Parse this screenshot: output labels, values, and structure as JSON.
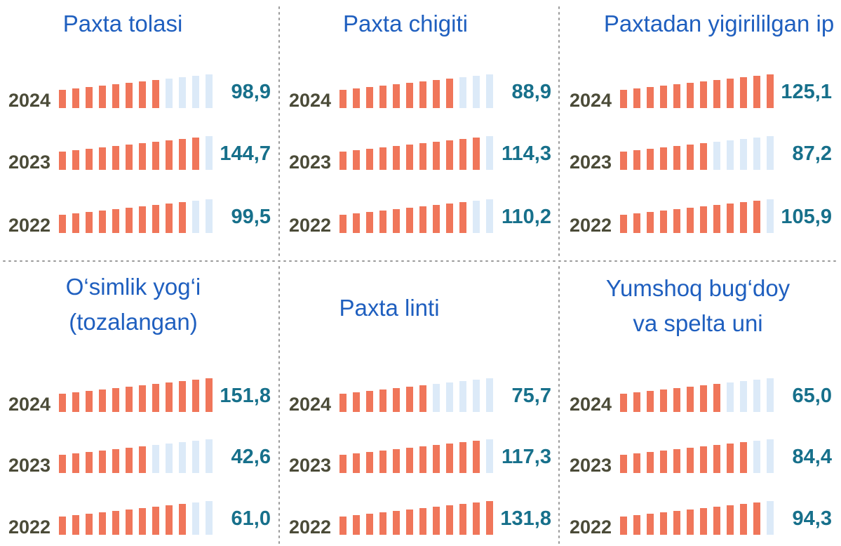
{
  "panels": [
    {
      "title": [
        "Paxta tolasi"
      ],
      "rows": [
        {
          "year": "2024",
          "value": "98,9"
        },
        {
          "year": "2023",
          "value": "144,7"
        },
        {
          "year": "2022",
          "value": "99,5"
        }
      ]
    },
    {
      "title": [
        "Paxta chigiti"
      ],
      "rows": [
        {
          "year": "2024",
          "value": "88,9"
        },
        {
          "year": "2023",
          "value": "114,3"
        },
        {
          "year": "2022",
          "value": "110,2"
        }
      ]
    },
    {
      "title": [
        "Paxtadan yigirililgan ip"
      ],
      "rows": [
        {
          "year": "2024",
          "value": "125,1"
        },
        {
          "year": "2023",
          "value": "87,2"
        },
        {
          "year": "2022",
          "value": "105,9"
        }
      ]
    },
    {
      "title": [
        "O‘simlik yog‘i",
        "(tozalangan)"
      ],
      "rows": [
        {
          "year": "2024",
          "value": "151,8"
        },
        {
          "year": "2023",
          "value": "42,6"
        },
        {
          "year": "2022",
          "value": "61,0"
        }
      ]
    },
    {
      "title": [
        "Paxta linti"
      ],
      "rows": [
        {
          "year": "2024",
          "value": "75,7"
        },
        {
          "year": "2023",
          "value": "117,3"
        },
        {
          "year": "2022",
          "value": "131,8"
        }
      ]
    },
    {
      "title": [
        "Yumshoq bug‘doy",
        "va spelta uni"
      ],
      "rows": [
        {
          "year": "2024",
          "value": "65,0"
        },
        {
          "year": "2023",
          "value": "84,4"
        },
        {
          "year": "2022",
          "value": "94,3"
        }
      ]
    }
  ]
}
